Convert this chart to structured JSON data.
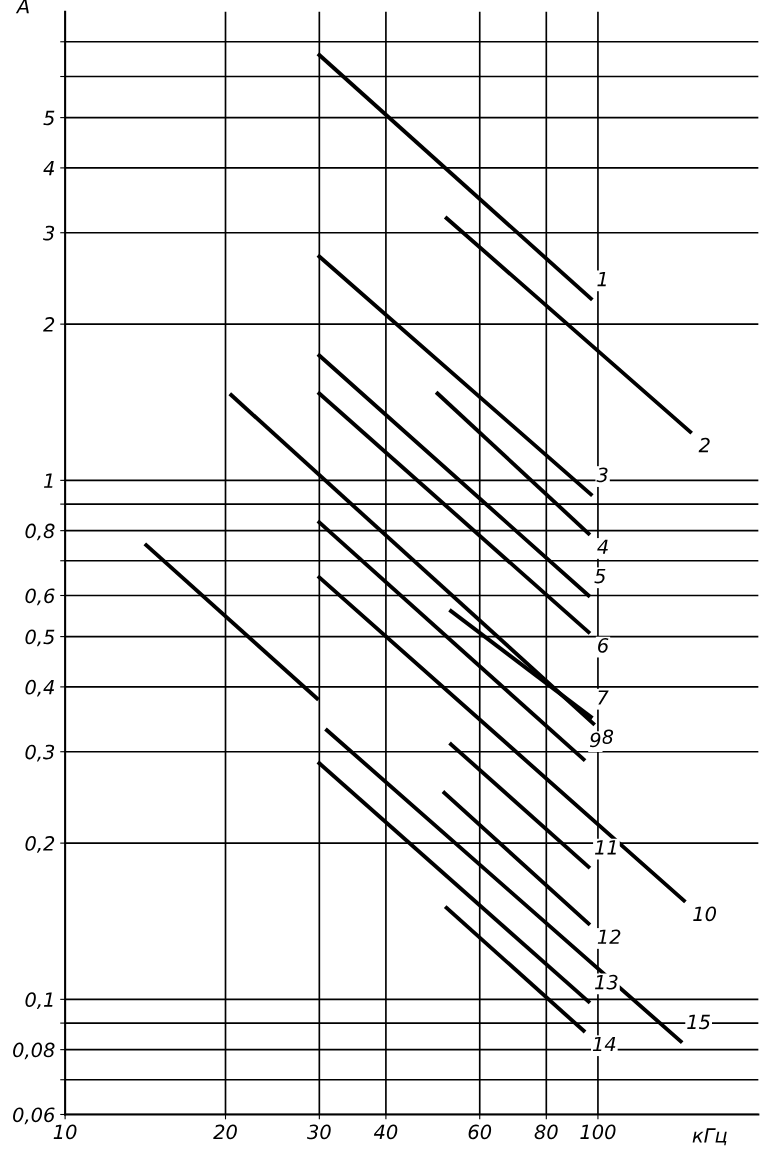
{
  "chart_data": {
    "type": "line",
    "xlabel": "кГц",
    "ylabel": "A",
    "log": "xy",
    "grid": true,
    "marker": "none",
    "line_style": "solid",
    "xlim": [
      10,
      200
    ],
    "ylim": [
      0.06,
      8
    ],
    "xticks": [
      10,
      20,
      30,
      40,
      60,
      80,
      100
    ],
    "yticks": [
      {
        "value": 0.06,
        "label": "0,06"
      },
      {
        "value": 0.07,
        "label": null
      },
      {
        "value": 0.08,
        "label": "0,08"
      },
      {
        "value": 0.09,
        "label": null
      },
      {
        "value": 0.1,
        "label": "0,1"
      },
      {
        "value": 0.2,
        "label": "0,2"
      },
      {
        "value": 0.3,
        "label": "0,3"
      },
      {
        "value": 0.4,
        "label": "0,4"
      },
      {
        "value": 0.5,
        "label": "0,5"
      },
      {
        "value": 0.6,
        "label": "0,6"
      },
      {
        "value": 0.7,
        "label": null
      },
      {
        "value": 0.8,
        "label": "0,8"
      },
      {
        "value": 0.9,
        "label": null
      },
      1,
      2,
      3,
      4,
      5,
      {
        "value": 6,
        "label": null
      },
      {
        "value": 7,
        "label": null
      }
    ],
    "series": [
      {
        "name": "1",
        "color": "#000000",
        "x": [
          30,
          97
        ],
        "values": [
          6.6,
          2.24
        ]
      },
      {
        "name": "2",
        "color": "#000000",
        "x": [
          52,
          149
        ],
        "values": [
          3.2,
          1.24
        ]
      },
      {
        "name": "3",
        "color": "#000000",
        "x": [
          30,
          97
        ],
        "values": [
          2.7,
          0.94
        ]
      },
      {
        "name": "4",
        "color": "#000000",
        "x": [
          50,
          96
        ],
        "values": [
          1.47,
          0.79
        ]
      },
      {
        "name": "5",
        "color": "#000000",
        "x": [
          30,
          96
        ],
        "values": [
          1.74,
          0.6
        ]
      },
      {
        "name": "6",
        "color": "#000000",
        "x": [
          30,
          96
        ],
        "values": [
          1.47,
          0.51
        ]
      },
      {
        "name": "7",
        "color": "#000000",
        "x": [
          53,
          97
        ],
        "values": [
          0.56,
          0.35
        ]
      },
      {
        "name": "8",
        "color": "#000000",
        "x": [
          20.5,
          98
        ],
        "values": [
          1.46,
          0.34
        ]
      },
      {
        "name": "9",
        "color": "#000000",
        "x": [
          30,
          94
        ],
        "values": [
          0.83,
          0.29
        ]
      },
      {
        "name": "10",
        "color": "#000000",
        "x": [
          30,
          145
        ],
        "values": [
          0.65,
          0.155
        ]
      },
      {
        "name": "11",
        "color": "#000000",
        "x": [
          53,
          96
        ],
        "values": [
          0.31,
          0.18
        ]
      },
      {
        "name": "12",
        "color": "#000000",
        "x": [
          51.5,
          96
        ],
        "values": [
          0.25,
          0.14
        ]
      },
      {
        "name": "13",
        "color": "#000000",
        "x": [
          30,
          96
        ],
        "values": [
          0.285,
          0.099
        ]
      },
      {
        "name": "14",
        "color": "#000000",
        "x": [
          52,
          94
        ],
        "values": [
          0.15,
          0.087
        ]
      },
      {
        "name": "15",
        "color": "#000000",
        "x": [
          31,
          143
        ],
        "values": [
          0.33,
          0.083
        ]
      },
      {
        "color": "#000000",
        "x": [
          14.2,
          29.7
        ],
        "values": [
          0.75,
          0.38
        ]
      }
    ]
  }
}
